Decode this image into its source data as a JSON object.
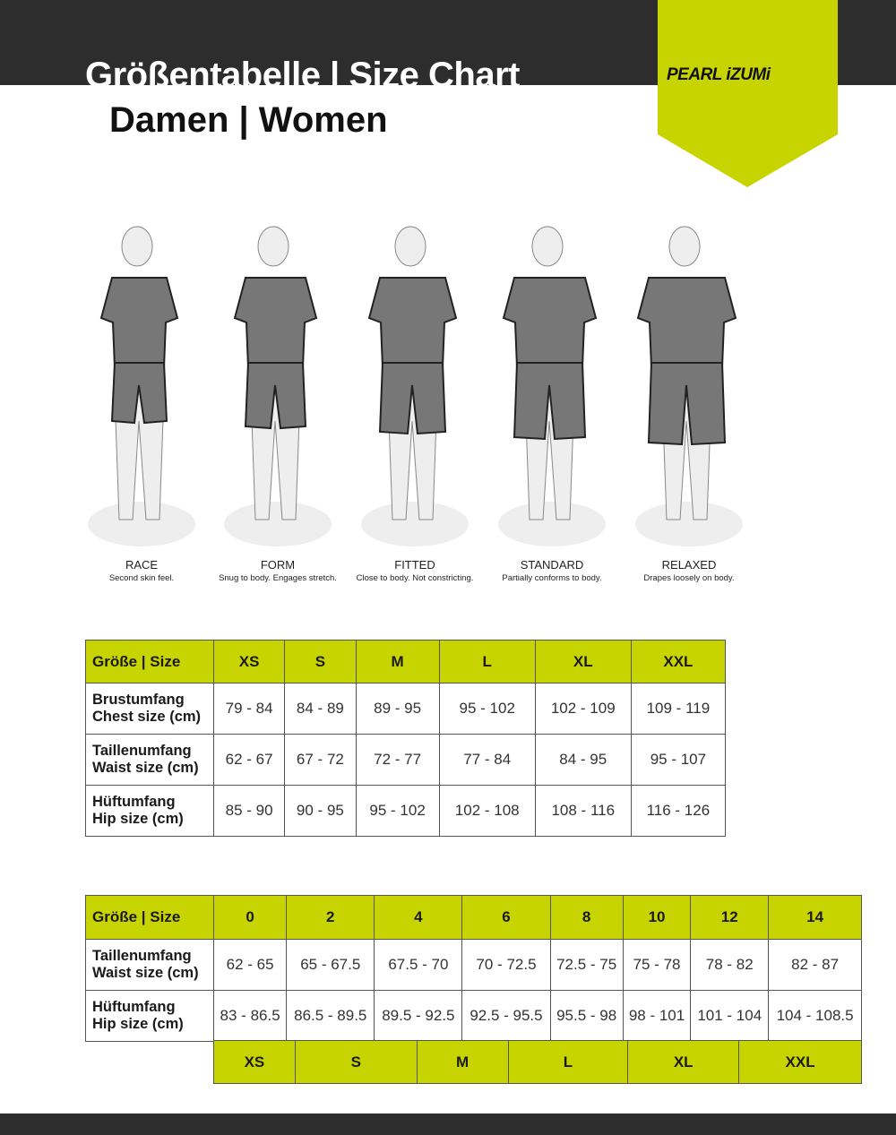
{
  "header": {
    "title": "Größentabelle | Size Chart",
    "subtitle": "Damen | Women",
    "brand": "PEARL iZUMi"
  },
  "colors": {
    "accent": "#c8d400",
    "dark": "#2d2d2d"
  },
  "fits": [
    {
      "name": "RACE",
      "desc": "Second skin feel."
    },
    {
      "name": "FORM",
      "desc": "Snug to body. Engages stretch."
    },
    {
      "name": "FITTED",
      "desc": "Close to body. Not constricting."
    },
    {
      "name": "STANDARD",
      "desc": "Partially conforms to body."
    },
    {
      "name": "RELAXED",
      "desc": "Drapes loosely on body."
    }
  ],
  "table1": {
    "header": "Größe | Size",
    "sizes": [
      "XS",
      "S",
      "M",
      "L",
      "XL",
      "XXL"
    ],
    "rows": [
      {
        "label1": "Brustumfang",
        "label2": "Chest size (cm)",
        "values": [
          "79 - 84",
          "84 - 89",
          "89 - 95",
          "95 - 102",
          "102 - 109",
          "109 - 119"
        ]
      },
      {
        "label1": "Taillenumfang",
        "label2": "Waist size (cm)",
        "values": [
          "62 - 67",
          "67 - 72",
          "72 - 77",
          "77 - 84",
          "84 - 95",
          "95 - 107"
        ]
      },
      {
        "label1": "Hüftumfang",
        "label2": "Hip size (cm)",
        "values": [
          "85 - 90",
          "90 - 95",
          "95 - 102",
          "102 - 108",
          "108 - 116",
          "116 - 126"
        ]
      }
    ]
  },
  "table2": {
    "header": "Größe | Size",
    "sizes": [
      "0",
      "2",
      "4",
      "6",
      "8",
      "10",
      "12",
      "14"
    ],
    "rows": [
      {
        "label1": "Taillenumfang",
        "label2": "Waist size (cm)",
        "values": [
          "62 - 65",
          "65 - 67.5",
          "67.5 - 70",
          "70 - 72.5",
          "72.5 - 75",
          "75 - 78",
          "78 - 82",
          "82 - 87"
        ]
      },
      {
        "label1": "Hüftumfang",
        "label2": "Hip size (cm)",
        "values": [
          "83 - 86.5",
          "86.5 - 89.5",
          "89.5 - 92.5",
          "92.5 - 95.5",
          "95.5 - 98",
          "98 - 101",
          "101 - 104",
          "104 - 108.5"
        ]
      }
    ],
    "letter_sizes": [
      "XS",
      "S",
      "M",
      "L",
      "XL",
      "XXL"
    ]
  }
}
